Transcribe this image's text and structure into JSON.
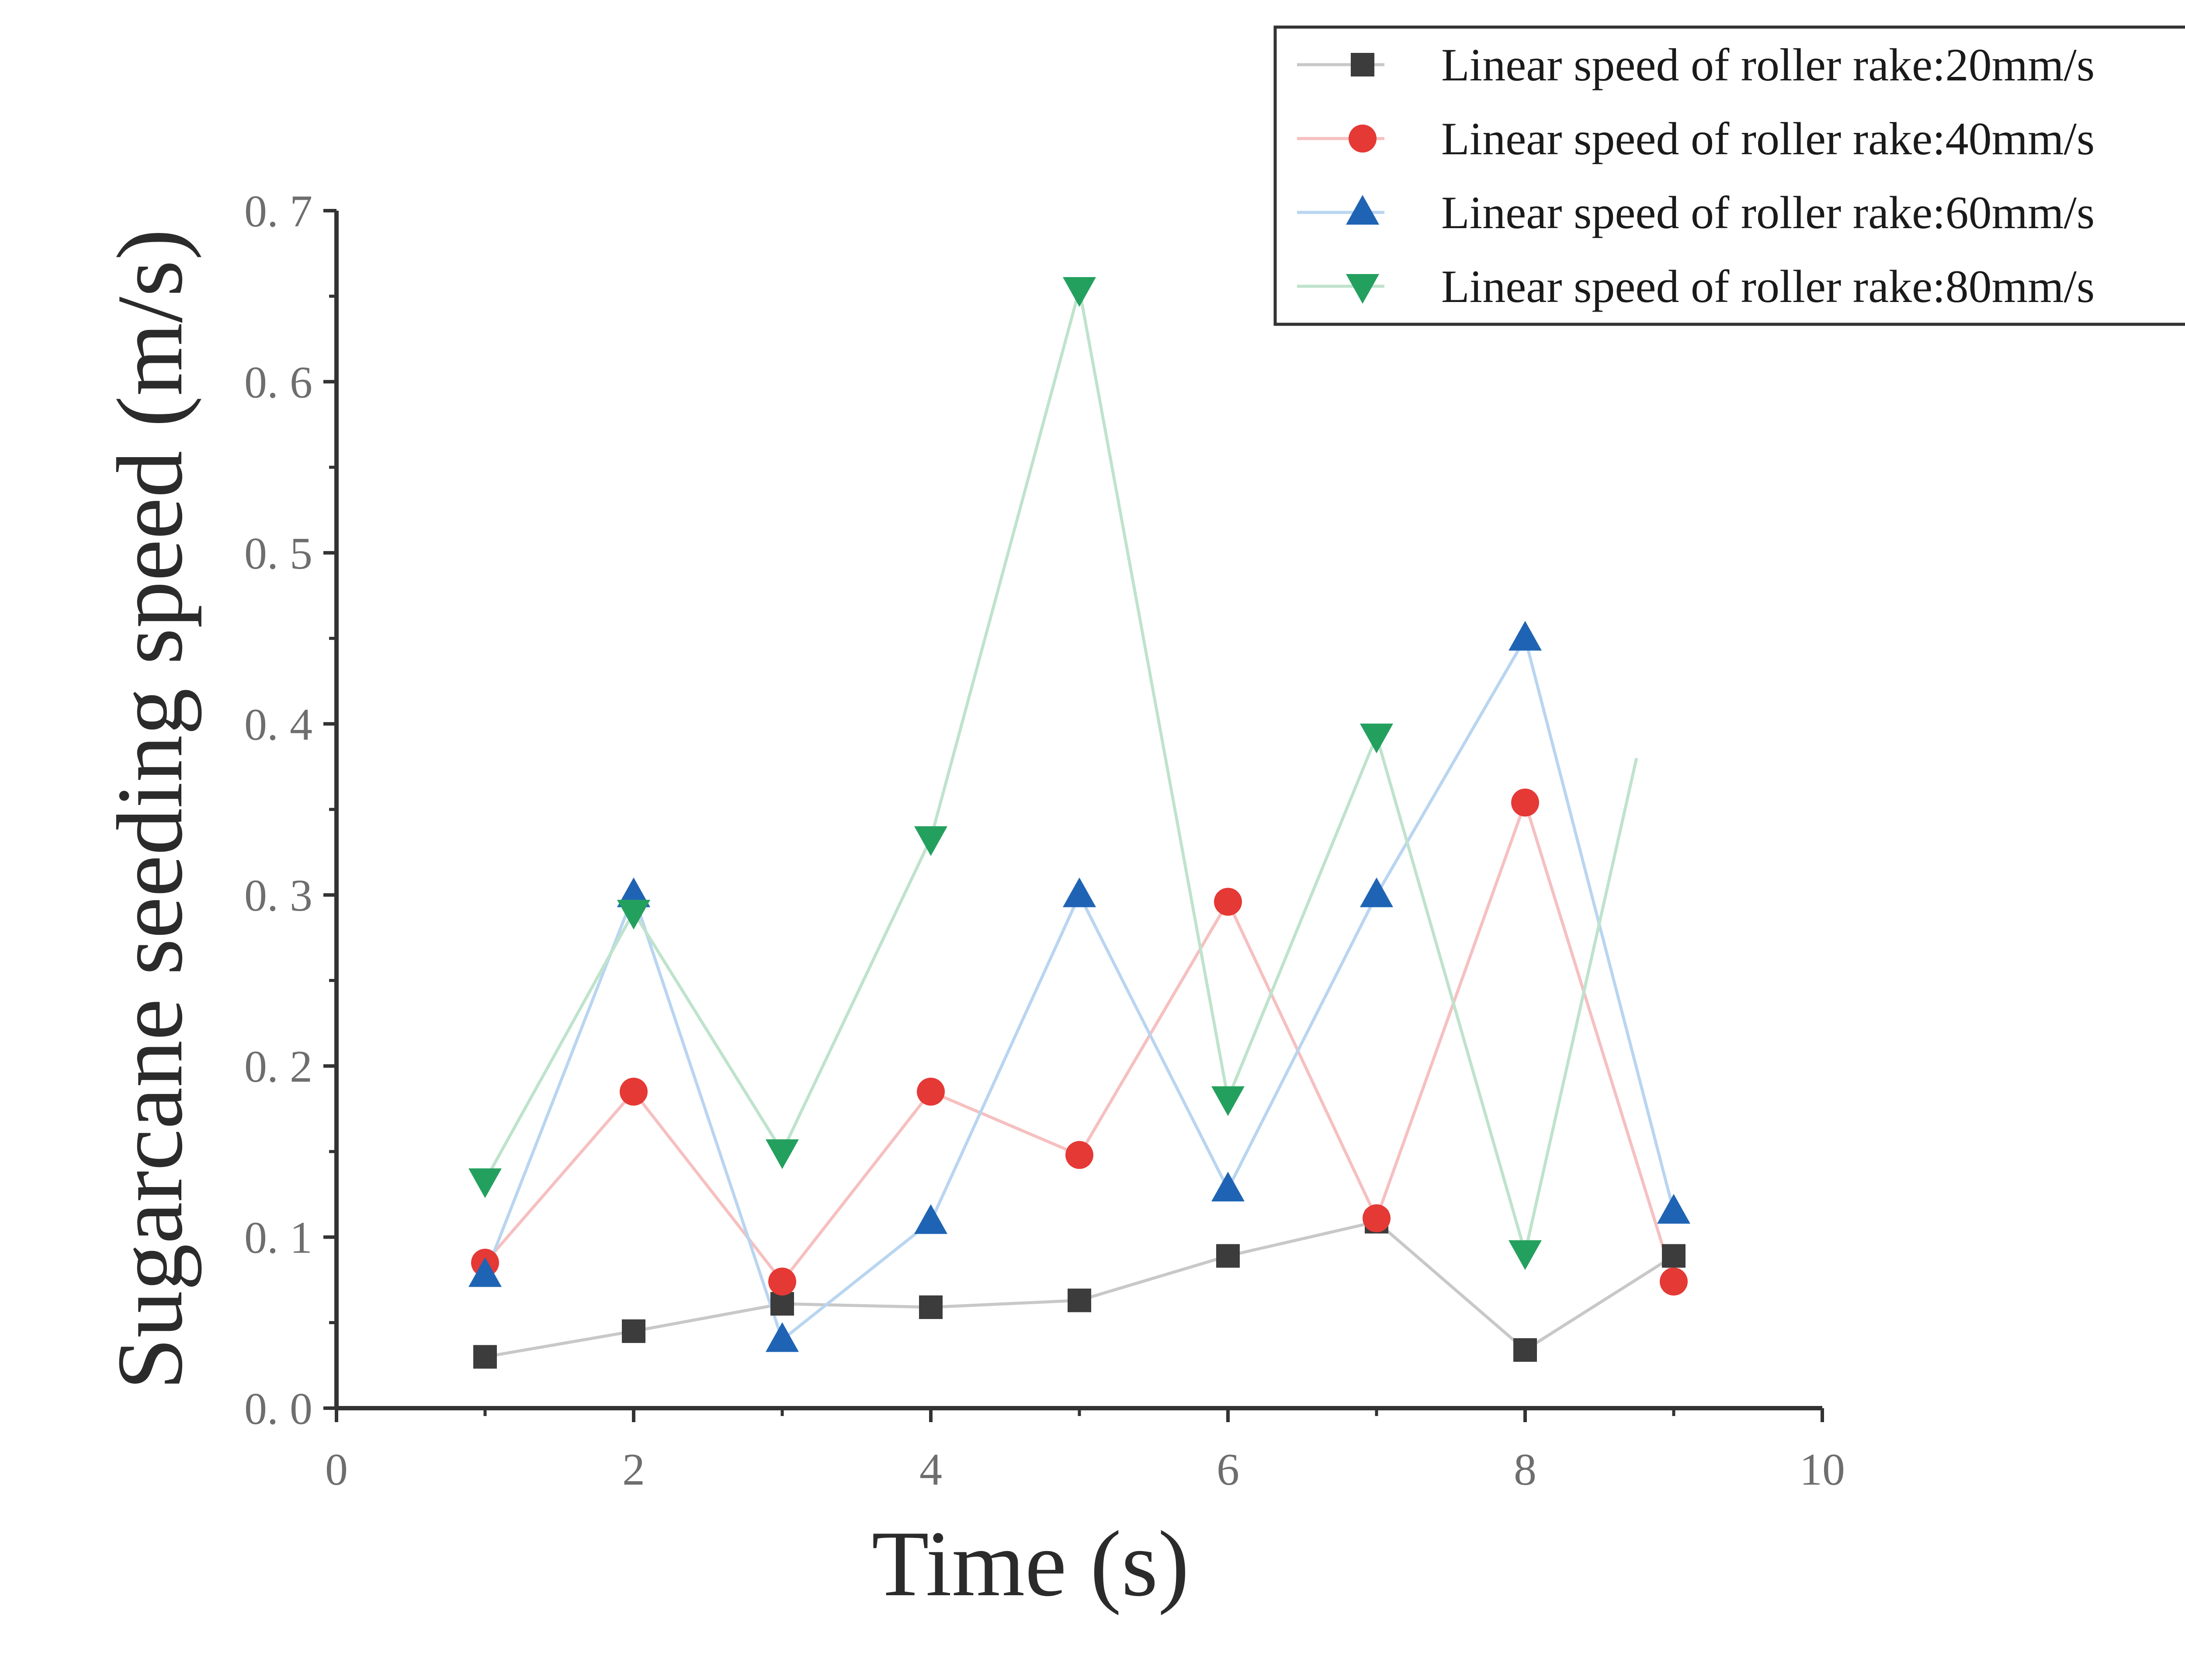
{
  "chart_data": {
    "type": "line",
    "title": "",
    "xlabel": "Time (s)",
    "ylabel": "Sugarcane seeding speed (m/s)",
    "xlim": [
      0,
      10
    ],
    "ylim": [
      0,
      0.7
    ],
    "xticks": [
      0,
      2,
      4,
      6,
      8,
      10
    ],
    "xtick_labels": [
      "0",
      "2",
      "4",
      "6",
      "8",
      "10"
    ],
    "yticks": [
      0,
      0.1,
      0.2,
      0.3,
      0.4,
      0.5,
      0.6,
      0.7
    ],
    "ytick_labels": [
      "0. 0",
      "0. 1",
      "0. 2",
      "0. 3",
      "0. 4",
      "0. 5",
      "0. 6",
      "0. 7"
    ],
    "grid": false,
    "legend_position": "top-right",
    "x": [
      1,
      2,
      3,
      4,
      5,
      6,
      7,
      8,
      9
    ],
    "series": [
      {
        "name": "Linear speed of roller rake:20mm/s",
        "marker": "square",
        "line_color": "#c8c8c8",
        "marker_color": "#3c3c3c",
        "values": [
          0.03,
          0.045,
          0.061,
          0.059,
          0.063,
          0.089,
          0.109,
          0.034,
          0.089
        ]
      },
      {
        "name": "Linear speed of roller rake:40mm/s",
        "marker": "circle",
        "line_color": "#f6c0c0",
        "marker_color": "#e53935",
        "values": [
          0.085,
          0.185,
          0.074,
          0.185,
          0.148,
          0.296,
          0.111,
          0.354,
          0.074
        ]
      },
      {
        "name": "Linear speed of roller rake:60mm/s",
        "marker": "triangle-up",
        "line_color": "#b9d5f0",
        "marker_color": "#1f64b4",
        "values": [
          0.078,
          0.3,
          0.04,
          0.109,
          0.3,
          0.128,
          0.3,
          0.45,
          0.115
        ]
      },
      {
        "name": "Linear speed of roller rake:80mm/s",
        "marker": "triangle-down",
        "line_color": "#bfe3cc",
        "marker_color": "#24a05e",
        "values": [
          0.133,
          0.29,
          0.15,
          0.333,
          0.654,
          0.181,
          0.393,
          0.091,
          0.38
        ],
        "x_override_last": 8.75
      }
    ]
  }
}
